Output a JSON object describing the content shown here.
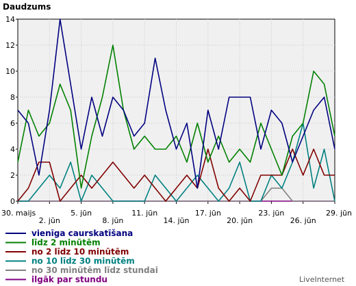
{
  "chart_data": {
    "type": "line",
    "title": "Daudzums",
    "ylim": [
      0,
      14
    ],
    "yticks": [
      0,
      2,
      4,
      6,
      8,
      10,
      12,
      14
    ],
    "grid": true,
    "legend_position": "bottom-left",
    "x": [
      "30. maijs",
      "31. maijs",
      "1. jūn",
      "2. jūn",
      "3. jūn",
      "4. jūn",
      "5. jūn",
      "6. jūn",
      "7. jūn",
      "8. jūn",
      "9. jūn",
      "10. jūn",
      "11. jūn",
      "12. jūn",
      "13. jūn",
      "14. jūn",
      "15. jūn",
      "16. jūn",
      "17. jūn",
      "18. jūn",
      "19. jūn",
      "20. jūn",
      "21. jūn",
      "22. jūn",
      "23. jūn",
      "24. jūn",
      "25. jūn",
      "26. jūn",
      "27. jūn",
      "28. jūn",
      "29. jūn"
    ],
    "x_tick_labels": [
      {
        "index": 0,
        "label": "30. maijs",
        "row": 1
      },
      {
        "index": 3,
        "label": "2. jūn",
        "row": 2
      },
      {
        "index": 6,
        "label": "5. jūn",
        "row": 1
      },
      {
        "index": 9,
        "label": "8. jūn",
        "row": 2
      },
      {
        "index": 12,
        "label": "11. jūn",
        "row": 1
      },
      {
        "index": 15,
        "label": "14. jūn",
        "row": 2
      },
      {
        "index": 18,
        "label": "17. jūn",
        "row": 1
      },
      {
        "index": 21,
        "label": "20. jūn",
        "row": 2
      },
      {
        "index": 24,
        "label": "23. jūn",
        "row": 1
      },
      {
        "index": 27,
        "label": "26. jūn",
        "row": 2
      },
      {
        "index": 30,
        "label": "29. jūn",
        "row": 1
      }
    ],
    "series": [
      {
        "name": "vienīga caurskatīšana",
        "color": "#000080",
        "values": [
          7,
          6,
          2,
          7,
          14,
          9,
          4,
          8,
          5,
          8,
          7,
          5,
          6,
          11,
          7,
          4,
          6,
          1,
          7,
          4,
          8,
          8,
          8,
          4,
          7,
          6,
          3,
          5,
          7,
          8,
          4
        ]
      },
      {
        "name": "līdz 2 minūtēm",
        "color": "#008000",
        "values": [
          3,
          7,
          5,
          6,
          9,
          7,
          1,
          5,
          8,
          12,
          7,
          4,
          5,
          4,
          4,
          5,
          3,
          6,
          3,
          5,
          3,
          4,
          3,
          6,
          4,
          2,
          5,
          6,
          10,
          9,
          5
        ]
      },
      {
        "name": "no 2 līdz 10 minūtēm",
        "color": "#800000",
        "values": [
          0,
          1,
          3,
          3,
          0,
          1,
          2,
          1,
          2,
          3,
          2,
          1,
          2,
          1,
          0,
          1,
          2,
          1,
          4,
          1,
          0,
          1,
          0,
          2,
          2,
          2,
          4,
          2,
          4,
          2,
          2
        ]
      },
      {
        "name": "no 10 līdz 30 minūtēm",
        "color": "#008080",
        "values": [
          0,
          0,
          1,
          2,
          1,
          3,
          0,
          2,
          1,
          0,
          0,
          0,
          0,
          2,
          1,
          0,
          1,
          2,
          1,
          0,
          1,
          3,
          0,
          0,
          2,
          1,
          3,
          6,
          1,
          4,
          0
        ]
      },
      {
        "name": "no 30 minūtēm līdz stundai",
        "color": "#808080",
        "values": [
          0,
          0,
          0,
          0,
          0,
          0,
          0,
          0,
          0,
          0,
          0,
          0,
          0,
          0,
          0,
          0,
          0,
          0,
          0,
          0,
          0,
          0,
          0,
          0,
          1,
          1,
          0,
          0,
          0,
          0,
          0
        ]
      },
      {
        "name": "ilgāk par stundu",
        "color": "#800080",
        "values": [
          0,
          0,
          0,
          0,
          0,
          0,
          0,
          0,
          0,
          0,
          0,
          0,
          0,
          0,
          0,
          0,
          0,
          0,
          0,
          0,
          0,
          0,
          0,
          0,
          0,
          0,
          0,
          0,
          0,
          0,
          0
        ]
      }
    ]
  },
  "branding": {
    "label": "LiveInternet"
  }
}
